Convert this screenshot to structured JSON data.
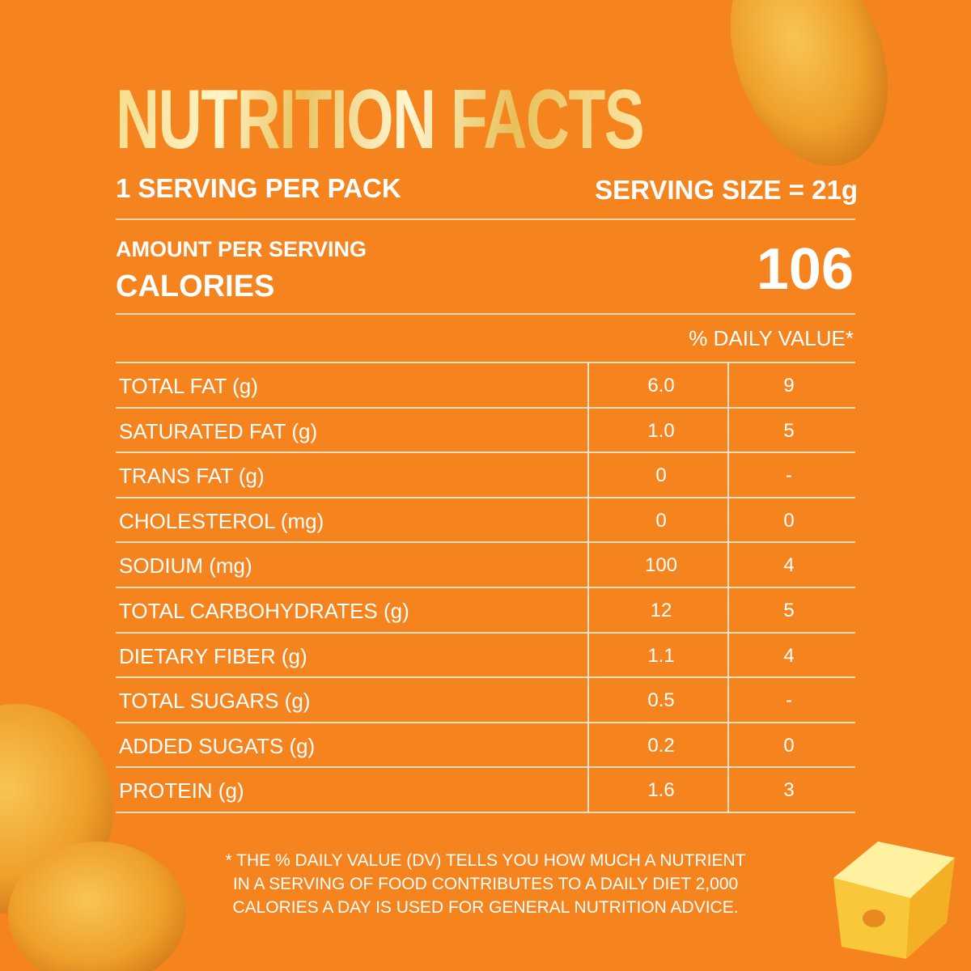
{
  "title": "NUTRITION FACTS",
  "servings": "1 SERVING PER PACK",
  "serving_size": "SERVING SIZE = 21g",
  "amount_label": "AMOUNT PER SERVING",
  "calories_label": "CALORIES",
  "calories": "106",
  "daily_value_header": "% DAILY VALUE*",
  "table": {
    "rows": [
      [
        "TOTAL FAT (g)",
        "6.0",
        "9"
      ],
      [
        "SATURATED FAT (g)",
        "1.0",
        "5"
      ],
      [
        "TRANS FAT (g)",
        "0",
        "-"
      ],
      [
        "CHOLESTEROL (mg)",
        "0",
        "0"
      ],
      [
        "SODIUM (mg)",
        "100",
        "4"
      ],
      [
        "TOTAL CARBOHYDRATES (g)",
        "12",
        "5"
      ],
      [
        "DIETARY FIBER (g)",
        "1.1",
        "4"
      ],
      [
        "TOTAL SUGARS (g)",
        "0.5",
        "-"
      ],
      [
        "ADDED SUGATS (g)",
        "0.2",
        "0"
      ],
      [
        "PROTEIN (g)",
        "1.6",
        "3"
      ]
    ]
  },
  "footnote": [
    "* THE % DAILY VALUE (DV) TELLS YOU HOW MUCH A NUTRIENT",
    "IN A SERVING OF FOOD CONTRIBUTES TO A DAILY DIET 2,000",
    "CALORIES A DAY IS USED FOR GENERAL NUTRITION ADVICE."
  ]
}
